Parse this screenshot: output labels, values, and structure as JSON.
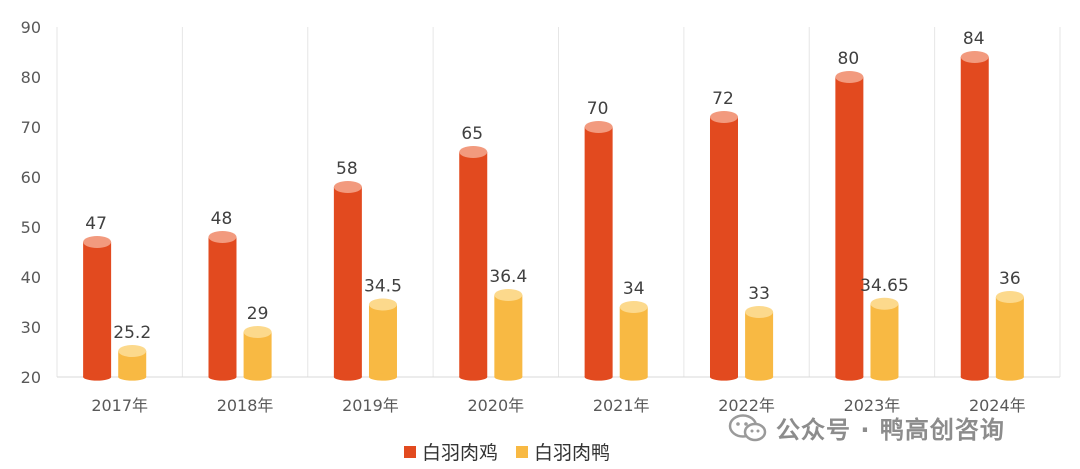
{
  "chart_data": {
    "type": "bar",
    "categories": [
      "2017年",
      "2018年",
      "2019年",
      "2020年",
      "2021年",
      "2022年",
      "2023年",
      "2024年"
    ],
    "series": [
      {
        "name": "白羽肉鸡",
        "values": [
          47,
          48,
          58,
          65,
          70,
          72,
          80,
          84
        ],
        "labels": [
          "47",
          "48",
          "58",
          "65",
          "70",
          "72",
          "80",
          "84"
        ],
        "color": "#E24A1F",
        "top_color": "#F29A7E"
      },
      {
        "name": "白羽肉鸭",
        "values": [
          25.2,
          29,
          34.5,
          36.4,
          34,
          33,
          34.65,
          36
        ],
        "labels": [
          "25.2",
          "29",
          "34.5",
          "36.4",
          "34",
          "33",
          "34.65",
          "36"
        ],
        "color": "#F8B943",
        "top_color": "#FCD98C"
      }
    ],
    "ylim": [
      20,
      90
    ],
    "yticks": [
      "20",
      "30",
      "40",
      "50",
      "60",
      "70",
      "80",
      "90"
    ],
    "grid": "vertical separators",
    "legend": "bottom-center",
    "xlabel": "",
    "ylabel": ""
  },
  "legend": {
    "items": [
      "白羽肉鸡",
      "白羽肉鸭"
    ]
  },
  "watermark": {
    "text": "公众号 · 鸭高创咨询"
  }
}
